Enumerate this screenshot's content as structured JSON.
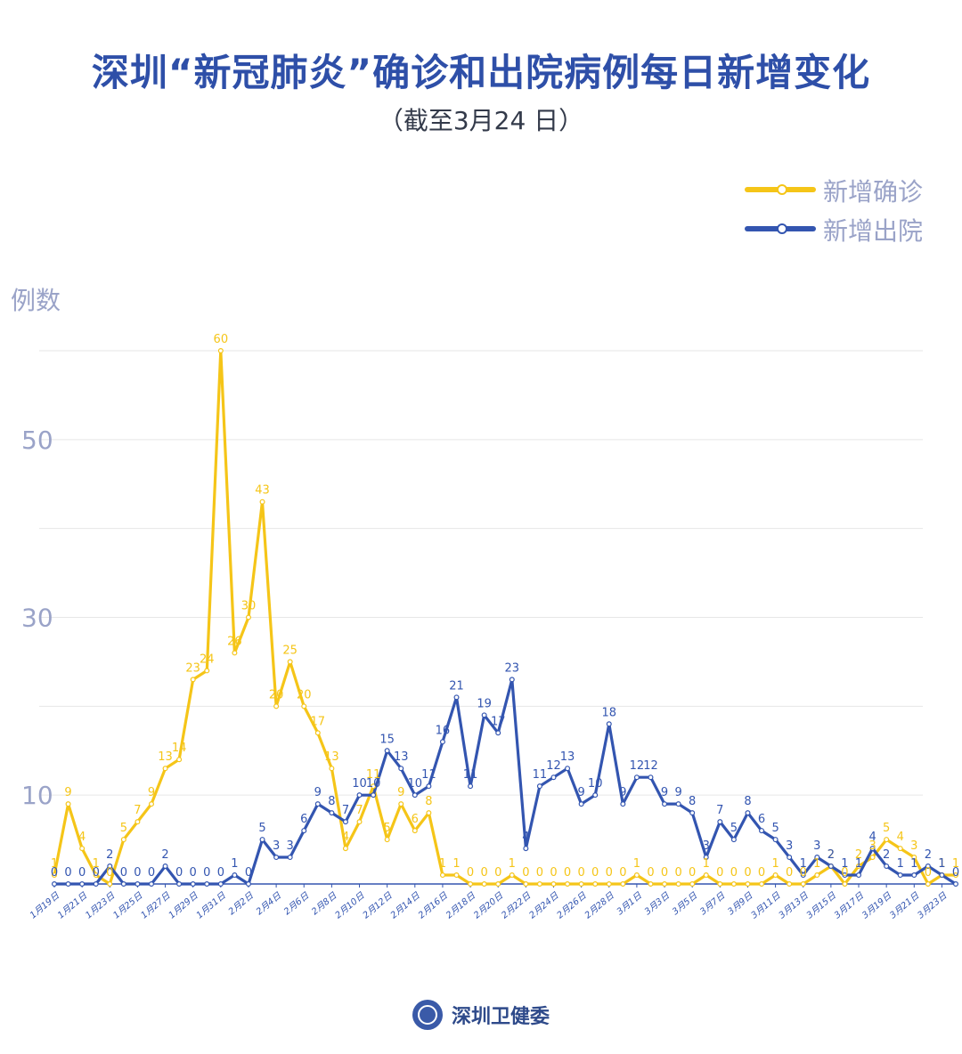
{
  "header": {
    "title": "深圳“新冠肺炎”确诊和出院病例每日新增变化",
    "subtitle": "（截至3月24 日）"
  },
  "footer": {
    "brand": "深圳卫健委"
  },
  "chart_data": {
    "type": "line",
    "title": "深圳“新冠肺炎”确诊和出院病例每日新增变化",
    "subtitle": "（截至3月24 日）",
    "ylabel": "例数",
    "xlabel": "",
    "ylim": [
      0,
      60
    ],
    "yticks": [
      10,
      30,
      50
    ],
    "grid": true,
    "legend_position": "top-right",
    "x": [
      "1月19日",
      "1月20日",
      "1月21日",
      "1月22日",
      "1月23日",
      "1月24日",
      "1月25日",
      "1月26日",
      "1月27日",
      "1月28日",
      "1月29日",
      "1月30日",
      "1月31日",
      "2月1日",
      "2月2日",
      "2月3日",
      "2月4日",
      "2月5日",
      "2月6日",
      "2月7日",
      "2月8日",
      "2月9日",
      "2月10日",
      "2月11日",
      "2月12日",
      "2月13日",
      "2月14日",
      "2月15日",
      "2月16日",
      "2月17日",
      "2月18日",
      "2月19日",
      "2月20日",
      "2月21日",
      "2月22日",
      "2月23日",
      "2月24日",
      "2月25日",
      "2月26日",
      "2月27日",
      "2月28日",
      "2月29日",
      "3月1日",
      "3月2日",
      "3月3日",
      "3月4日",
      "3月5日",
      "3月6日",
      "3月7日",
      "3月8日",
      "3月9日",
      "3月10日",
      "3月11日",
      "3月12日",
      "3月13日",
      "3月14日",
      "3月15日",
      "3月16日",
      "3月17日",
      "3月18日",
      "3月19日",
      "3月20日",
      "3月21日",
      "3月22日",
      "3月23日",
      "3月24日"
    ],
    "x_tick_labels": [
      "1月19日",
      "1月21日",
      "1月23日",
      "1月25日",
      "1月27日",
      "1月29日",
      "1月31日",
      "2月2日",
      "2月4日",
      "2月6日",
      "2月8日",
      "2月10日",
      "2月12日",
      "2月14日",
      "2月16日",
      "2月18日",
      "2月20日",
      "2月22日",
      "2月24日",
      "2月26日",
      "2月28日",
      "3月1日",
      "3月3日",
      "3月5日",
      "3月7日",
      "3月9日",
      "3月11日",
      "3月13日",
      "3月15日",
      "3月17日",
      "3月19日",
      "3月21日",
      "3月23日"
    ],
    "series": [
      {
        "name": "新增确诊",
        "color": "#f5c518",
        "values": [
          1,
          9,
          4,
          1,
          0,
          5,
          7,
          9,
          13,
          14,
          23,
          24,
          60,
          26,
          30,
          43,
          20,
          25,
          20,
          17,
          13,
          4,
          7,
          11,
          5,
          9,
          6,
          8,
          1,
          1,
          0,
          0,
          0,
          1,
          0,
          0,
          0,
          0,
          0,
          0,
          0,
          0,
          1,
          0,
          0,
          0,
          0,
          1,
          0,
          0,
          0,
          0,
          1,
          0,
          0,
          1,
          2,
          0,
          2,
          3,
          5,
          4,
          3,
          0,
          1,
          1
        ]
      },
      {
        "name": "新增出院",
        "color": "#3355b0",
        "values": [
          0,
          0,
          0,
          0,
          2,
          0,
          0,
          0,
          2,
          0,
          0,
          0,
          0,
          1,
          0,
          5,
          3,
          3,
          6,
          9,
          8,
          7,
          10,
          10,
          15,
          13,
          10,
          11,
          16,
          21,
          11,
          19,
          17,
          23,
          4,
          11,
          12,
          13,
          9,
          10,
          18,
          9,
          12,
          12,
          9,
          9,
          8,
          3,
          7,
          5,
          8,
          6,
          5,
          3,
          1,
          3,
          2,
          1,
          1,
          4,
          2,
          1,
          1,
          2,
          1,
          0
        ]
      }
    ]
  }
}
